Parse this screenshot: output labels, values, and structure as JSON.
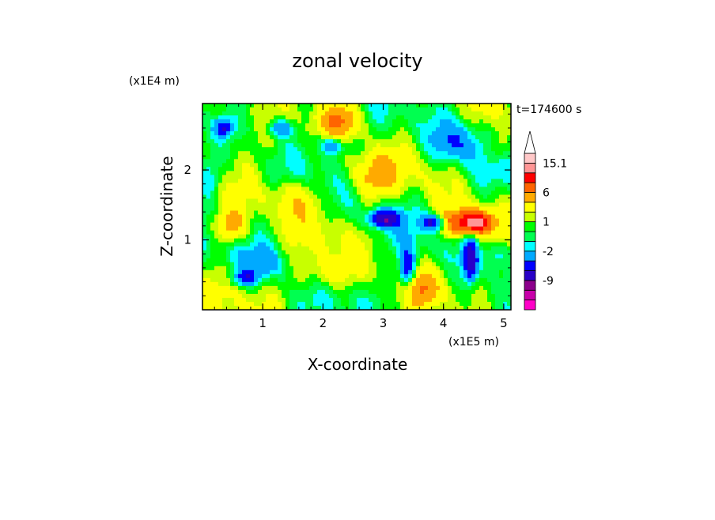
{
  "chart_data": {
    "type": "heatmap",
    "title": "zonal velocity",
    "xlabel": "X-coordinate",
    "ylabel": "Z-coordinate",
    "x_scale_label": "(x1E5 m)",
    "y_scale_label": "(x1E4 m)",
    "time_label": "t=174600 s",
    "xlim": [
      0,
      5.12
    ],
    "ylim": [
      0,
      2.95
    ],
    "x_ticks": [
      "1",
      "2",
      "3",
      "4",
      "5"
    ],
    "x_tick_values": [
      1,
      2,
      3,
      4,
      5
    ],
    "y_ticks": [
      "1",
      "2"
    ],
    "y_tick_values": [
      1,
      2
    ],
    "colorbar": {
      "labels": [
        "15.1",
        "6",
        "1",
        "-2",
        "-9"
      ],
      "label_values": [
        15.1,
        6,
        1,
        -2,
        -9
      ],
      "levels": [
        -15,
        -12,
        -9,
        -6,
        -4,
        -2,
        -1,
        0,
        1,
        2,
        4,
        6,
        9,
        12,
        15.1
      ],
      "colors": [
        "#ff00c8",
        "#c800aa",
        "#8c008c",
        "#2800c8",
        "#0000ff",
        "#00aaff",
        "#00ffff",
        "#00ff50",
        "#00ff00",
        "#c8ff00",
        "#ffff00",
        "#ffaa00",
        "#ff6400",
        "#ff0000",
        "#ff9696",
        "#ffc8c8",
        "#ffffff"
      ],
      "extend_top_arrow": true
    },
    "hotspots": [
      {
        "x": 0.45,
        "z": 1.2,
        "value": 5,
        "sx": 0.3,
        "sz": 0.25
      },
      {
        "x": 2.3,
        "z": 2.7,
        "value": 5,
        "sx": 0.35,
        "sz": 0.25
      },
      {
        "x": 4.55,
        "z": 1.25,
        "value": 10,
        "sx": 0.25,
        "sz": 0.15
      },
      {
        "x": 4.2,
        "z": 1.25,
        "value": 7,
        "sx": 0.4,
        "sz": 0.2
      },
      {
        "x": 3.0,
        "z": 1.3,
        "value": -9,
        "sx": 0.25,
        "sz": 0.12
      },
      {
        "x": 3.85,
        "z": 1.25,
        "value": -9,
        "sx": 0.2,
        "sz": 0.12
      },
      {
        "x": 3.4,
        "z": 0.6,
        "value": -7,
        "sx": 0.12,
        "sz": 0.25
      },
      {
        "x": 4.45,
        "z": 0.7,
        "value": -8,
        "sx": 0.12,
        "sz": 0.3
      },
      {
        "x": 0.35,
        "z": 2.6,
        "value": -6,
        "sx": 0.15,
        "sz": 0.12
      },
      {
        "x": 1.3,
        "z": 2.6,
        "value": -5,
        "sx": 0.2,
        "sz": 0.12
      },
      {
        "x": 2.15,
        "z": 2.35,
        "value": -5,
        "sx": 0.2,
        "sz": 0.12
      },
      {
        "x": 4.2,
        "z": 2.4,
        "value": -4,
        "sx": 0.4,
        "sz": 0.3
      },
      {
        "x": 0.7,
        "z": 0.45,
        "value": -5,
        "sx": 0.2,
        "sz": 0.1
      },
      {
        "x": 1.0,
        "z": 0.65,
        "value": -3,
        "sx": 0.4,
        "sz": 0.2
      },
      {
        "x": 2.0,
        "z": 0.5,
        "value": 3,
        "sx": 0.5,
        "sz": 0.25
      },
      {
        "x": 1.5,
        "z": 1.6,
        "value": 3,
        "sx": 0.4,
        "sz": 0.3
      },
      {
        "x": 2.8,
        "z": 1.9,
        "value": 4,
        "sx": 0.4,
        "sz": 0.3
      },
      {
        "x": 0.1,
        "z": 1.9,
        "value": -3,
        "sx": 0.2,
        "sz": 0.3
      },
      {
        "x": 4.9,
        "z": 2.3,
        "value": 3,
        "sx": 0.2,
        "sz": 0.25
      },
      {
        "x": 3.7,
        "z": 0.3,
        "value": 4,
        "sx": 0.25,
        "sz": 0.25
      },
      {
        "x": 4.9,
        "z": 0.8,
        "value": -3,
        "sx": 0.2,
        "sz": 0.2
      }
    ]
  }
}
